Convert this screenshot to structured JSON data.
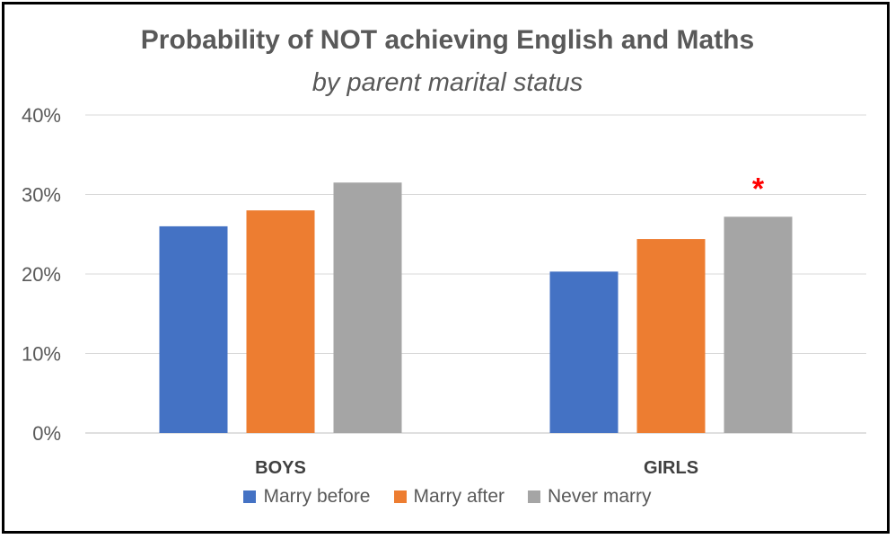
{
  "chart_data": {
    "type": "bar",
    "title": "Probability of NOT achieving English and Maths",
    "subtitle": "by parent marital status",
    "categories": [
      "BOYS",
      "GIRLS"
    ],
    "series": [
      {
        "name": "Marry before",
        "values": [
          26,
          20.3
        ],
        "color": "#4472C4"
      },
      {
        "name": "Marry after",
        "values": [
          28,
          24.4
        ],
        "color": "#ED7D31"
      },
      {
        "name": "Never marry",
        "values": [
          31.5,
          27.2
        ],
        "color": "#A5A5A5"
      }
    ],
    "y_unit": "%",
    "ylim": [
      0,
      40
    ],
    "yticks": [
      "0%",
      "10%",
      "20%",
      "30%",
      "40%"
    ],
    "grid": true,
    "legend_position": "bottom",
    "annotation": {
      "text": "*",
      "category": "GIRLS",
      "series": "Never marry",
      "color": "#FF0000"
    }
  }
}
